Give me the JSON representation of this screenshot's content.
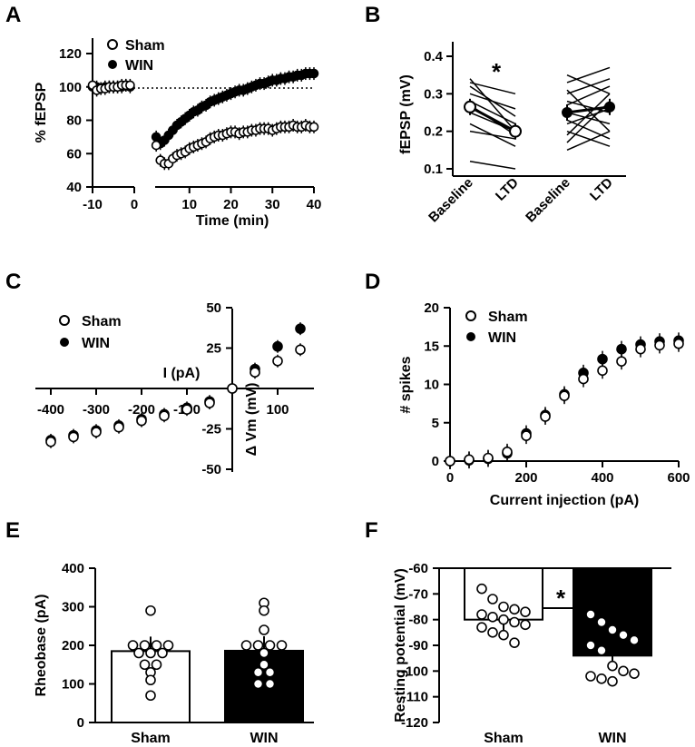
{
  "chart_data": [
    {
      "panel": "A",
      "type": "scatter",
      "title": "",
      "ylabel": "% fEPSP",
      "xlabel": "Time (min)",
      "ylim": [
        40,
        120
      ],
      "yticks": [
        "40",
        "60",
        "80",
        "100",
        "120"
      ],
      "xticks": [
        "-10",
        "0",
        "10",
        "20",
        "30",
        "40"
      ],
      "reference_line": 100,
      "legend": [
        "Sham",
        "WIN"
      ],
      "series": [
        {
          "name": "Sham",
          "baseline": [
            [
              -10,
              101
            ],
            [
              -9,
              98
            ],
            [
              -8,
              99
            ],
            [
              -7,
              99
            ],
            [
              -6,
              100
            ],
            [
              -5,
              100
            ],
            [
              -4,
              100
            ],
            [
              -3,
              101
            ],
            [
              -2,
              101
            ],
            [
              -1,
              101
            ]
          ],
          "post": [
            [
              2,
              65
            ],
            [
              3,
              56
            ],
            [
              4,
              54
            ],
            [
              5,
              54
            ],
            [
              6,
              57
            ],
            [
              7,
              59
            ],
            [
              8,
              60
            ],
            [
              9,
              61
            ],
            [
              10,
              63
            ],
            [
              11,
              64
            ],
            [
              12,
              65
            ],
            [
              13,
              66
            ],
            [
              14,
              67
            ],
            [
              15,
              69
            ],
            [
              16,
              70
            ],
            [
              17,
              71
            ],
            [
              18,
              71
            ],
            [
              19,
              72
            ],
            [
              20,
              73
            ],
            [
              21,
              73
            ],
            [
              22,
              72
            ],
            [
              23,
              73
            ],
            [
              24,
              73
            ],
            [
              25,
              74
            ],
            [
              26,
              74
            ],
            [
              27,
              75
            ],
            [
              28,
              75
            ],
            [
              29,
              75
            ],
            [
              30,
              74
            ],
            [
              31,
              75
            ],
            [
              32,
              76
            ],
            [
              33,
              76
            ],
            [
              34,
              76
            ],
            [
              35,
              77
            ],
            [
              36,
              76
            ],
            [
              37,
              76
            ],
            [
              38,
              77
            ],
            [
              39,
              76
            ],
            [
              40,
              76
            ]
          ]
        },
        {
          "name": "WIN",
          "baseline": [
            [
              -10,
              100
            ],
            [
              -9,
              100
            ],
            [
              -8,
              99
            ],
            [
              -7,
              100
            ],
            [
              -6,
              100
            ],
            [
              -5,
              100
            ],
            [
              -4,
              100
            ],
            [
              -3,
              100
            ],
            [
              -2,
              101
            ],
            [
              -1,
              100
            ]
          ],
          "post": [
            [
              2,
              70
            ],
            [
              3,
              66
            ],
            [
              4,
              68
            ],
            [
              5,
              71
            ],
            [
              6,
              74
            ],
            [
              7,
              77
            ],
            [
              8,
              79
            ],
            [
              9,
              81
            ],
            [
              10,
              83
            ],
            [
              11,
              85
            ],
            [
              12,
              86
            ],
            [
              13,
              88
            ],
            [
              14,
              89
            ],
            [
              15,
              91
            ],
            [
              16,
              92
            ],
            [
              17,
              93
            ],
            [
              18,
              94
            ],
            [
              19,
              95
            ],
            [
              20,
              96
            ],
            [
              21,
              97
            ],
            [
              22,
              98
            ],
            [
              23,
              98
            ],
            [
              24,
              99
            ],
            [
              25,
              100
            ],
            [
              26,
              101
            ],
            [
              27,
              102
            ],
            [
              28,
              102
            ],
            [
              29,
              103
            ],
            [
              30,
              104
            ],
            [
              31,
              104
            ],
            [
              32,
              105
            ],
            [
              33,
              105
            ],
            [
              34,
              106
            ],
            [
              35,
              106
            ],
            [
              36,
              107
            ],
            [
              37,
              107
            ],
            [
              38,
              108
            ],
            [
              39,
              108
            ],
            [
              40,
              108
            ]
          ]
        }
      ]
    },
    {
      "panel": "B",
      "type": "line",
      "ylabel": "fEPSP (mV)",
      "ylim": [
        0.1,
        0.4
      ],
      "yticks": [
        "0.1",
        "0.2",
        "0.3",
        "0.4"
      ],
      "categories": [
        "Baseline",
        "LTD",
        "Baseline",
        "LTD"
      ],
      "significance": "*",
      "sham_pairs": [
        [
          0.12,
          0.1
        ],
        [
          0.2,
          0.18
        ],
        [
          0.22,
          0.16
        ],
        [
          0.25,
          0.2
        ],
        [
          0.27,
          0.19
        ],
        [
          0.28,
          0.22
        ],
        [
          0.3,
          0.26
        ],
        [
          0.32,
          0.24
        ],
        [
          0.34,
          0.2
        ],
        [
          0.33,
          0.3
        ]
      ],
      "sham_means": [
        0.265,
        0.2
      ],
      "win_pairs": [
        [
          0.15,
          0.2
        ],
        [
          0.17,
          0.28
        ],
        [
          0.2,
          0.16
        ],
        [
          0.22,
          0.26
        ],
        [
          0.25,
          0.22
        ],
        [
          0.27,
          0.32
        ],
        [
          0.28,
          0.25
        ],
        [
          0.3,
          0.34
        ],
        [
          0.31,
          0.2
        ],
        [
          0.33,
          0.37
        ],
        [
          0.35,
          0.3
        ],
        [
          0.19,
          0.3
        ],
        [
          0.23,
          0.18
        ]
      ],
      "win_means": [
        0.25,
        0.265
      ]
    },
    {
      "panel": "C",
      "type": "scatter",
      "xlabel": "I (pA)",
      "ylabel": "Δ Vm (mV)",
      "xticks": [
        "-400",
        "-300",
        "-200",
        "-100",
        "100"
      ],
      "yticks": [
        "-50",
        "-25",
        "25",
        "50"
      ],
      "xlim": [
        -400,
        150
      ],
      "ylim": [
        -50,
        50
      ],
      "legend": [
        "Sham",
        "WIN"
      ],
      "series": [
        {
          "name": "Sham",
          "x": [
            -400,
            -350,
            -300,
            -250,
            -200,
            -150,
            -100,
            -50,
            0,
            50,
            100,
            150
          ],
          "y": [
            -33,
            -30,
            -27,
            -24,
            -20,
            -17,
            -13,
            -9,
            0,
            10,
            17,
            24
          ]
        },
        {
          "name": "WIN",
          "x": [
            -400,
            -350,
            -300,
            -250,
            -200,
            -150,
            -100,
            -50,
            0,
            50,
            100,
            150
          ],
          "y": [
            -32,
            -29,
            -26,
            -23,
            -19,
            -16,
            -12,
            -8,
            0,
            12,
            26,
            37
          ]
        }
      ]
    },
    {
      "panel": "D",
      "type": "scatter",
      "xlabel": "Current injection (pA)",
      "ylabel": "# spikes",
      "xticks": [
        "0",
        "200",
        "400",
        "600"
      ],
      "yticks": [
        "0",
        "5",
        "10",
        "15",
        "20"
      ],
      "xlim": [
        0,
        600
      ],
      "ylim": [
        0,
        20
      ],
      "legend": [
        "Sham",
        "WIN"
      ],
      "series": [
        {
          "name": "Sham",
          "x": [
            0,
            50,
            100,
            150,
            200,
            250,
            300,
            350,
            400,
            450,
            500,
            550,
            600
          ],
          "y": [
            0,
            0.2,
            0.4,
            1.2,
            3.3,
            5.8,
            8.5,
            10.7,
            11.8,
            13.0,
            14.6,
            15.1,
            15.3
          ]
        },
        {
          "name": "WIN",
          "x": [
            0,
            50,
            100,
            150,
            200,
            250,
            300,
            350,
            400,
            450,
            500,
            550,
            600
          ],
          "y": [
            0,
            0.1,
            0.3,
            1.0,
            3.6,
            6.0,
            8.7,
            11.5,
            13.3,
            14.6,
            15.2,
            15.6,
            15.7
          ]
        }
      ]
    },
    {
      "panel": "E",
      "type": "bar",
      "ylabel": "Rheobase (pA)",
      "categories": [
        "Sham",
        "WIN"
      ],
      "values": [
        185,
        186
      ],
      "ylim": [
        0,
        400
      ],
      "yticks": [
        "0",
        "100",
        "200",
        "300",
        "400"
      ],
      "points": [
        [
          290,
          200,
          200,
          200,
          200,
          180,
          180,
          180,
          150,
          150,
          130,
          110,
          70
        ],
        [
          310,
          290,
          240,
          200,
          200,
          200,
          200,
          180,
          150,
          130,
          130,
          100,
          100
        ]
      ]
    },
    {
      "panel": "F",
      "type": "bar",
      "ylabel": "Resting potential (mV)",
      "categories": [
        "Sham",
        "WIN"
      ],
      "values": [
        -80,
        -94
      ],
      "ylim": [
        -120,
        -60
      ],
      "yticks": [
        "-60",
        "-70",
        "-80",
        "-90",
        "-100",
        "-110",
        "-120"
      ],
      "significance": "*",
      "points": [
        [
          -68,
          -72,
          -75,
          -76,
          -77,
          -78,
          -79,
          -80,
          -81,
          -82,
          -83,
          -85,
          -86,
          -89
        ],
        [
          -78,
          -81,
          -84,
          -86,
          -88,
          -90,
          -92,
          -98,
          -100,
          -101,
          -102,
          -103,
          -104
        ]
      ]
    }
  ]
}
